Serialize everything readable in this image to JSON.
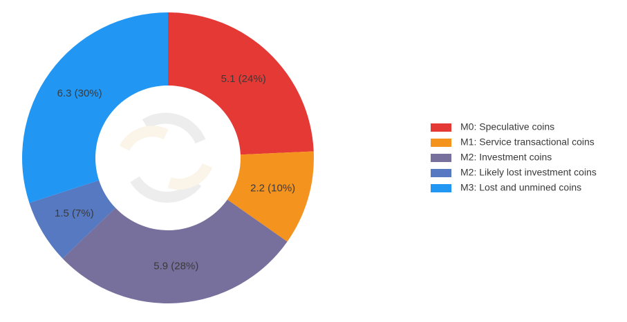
{
  "chart_data": {
    "type": "pie",
    "donut": true,
    "categories": [
      "M0: Speculative coins",
      "M1: Service transactional coins",
      "M2: Investment coins",
      "M2: Likely lost investment coins",
      "M3: Lost and unmined coins"
    ],
    "values": [
      5.1,
      2.2,
      5.9,
      1.5,
      6.3
    ],
    "value_labels": [
      "5.1 (24%)",
      "2.2 (10%)",
      "5.9 (28%)",
      "1.5 (7%)",
      "6.3 (30%)"
    ],
    "colors": [
      "#e53935",
      "#f5931f",
      "#77709c",
      "#5679c1",
      "#2196f3"
    ],
    "legend": "right"
  }
}
